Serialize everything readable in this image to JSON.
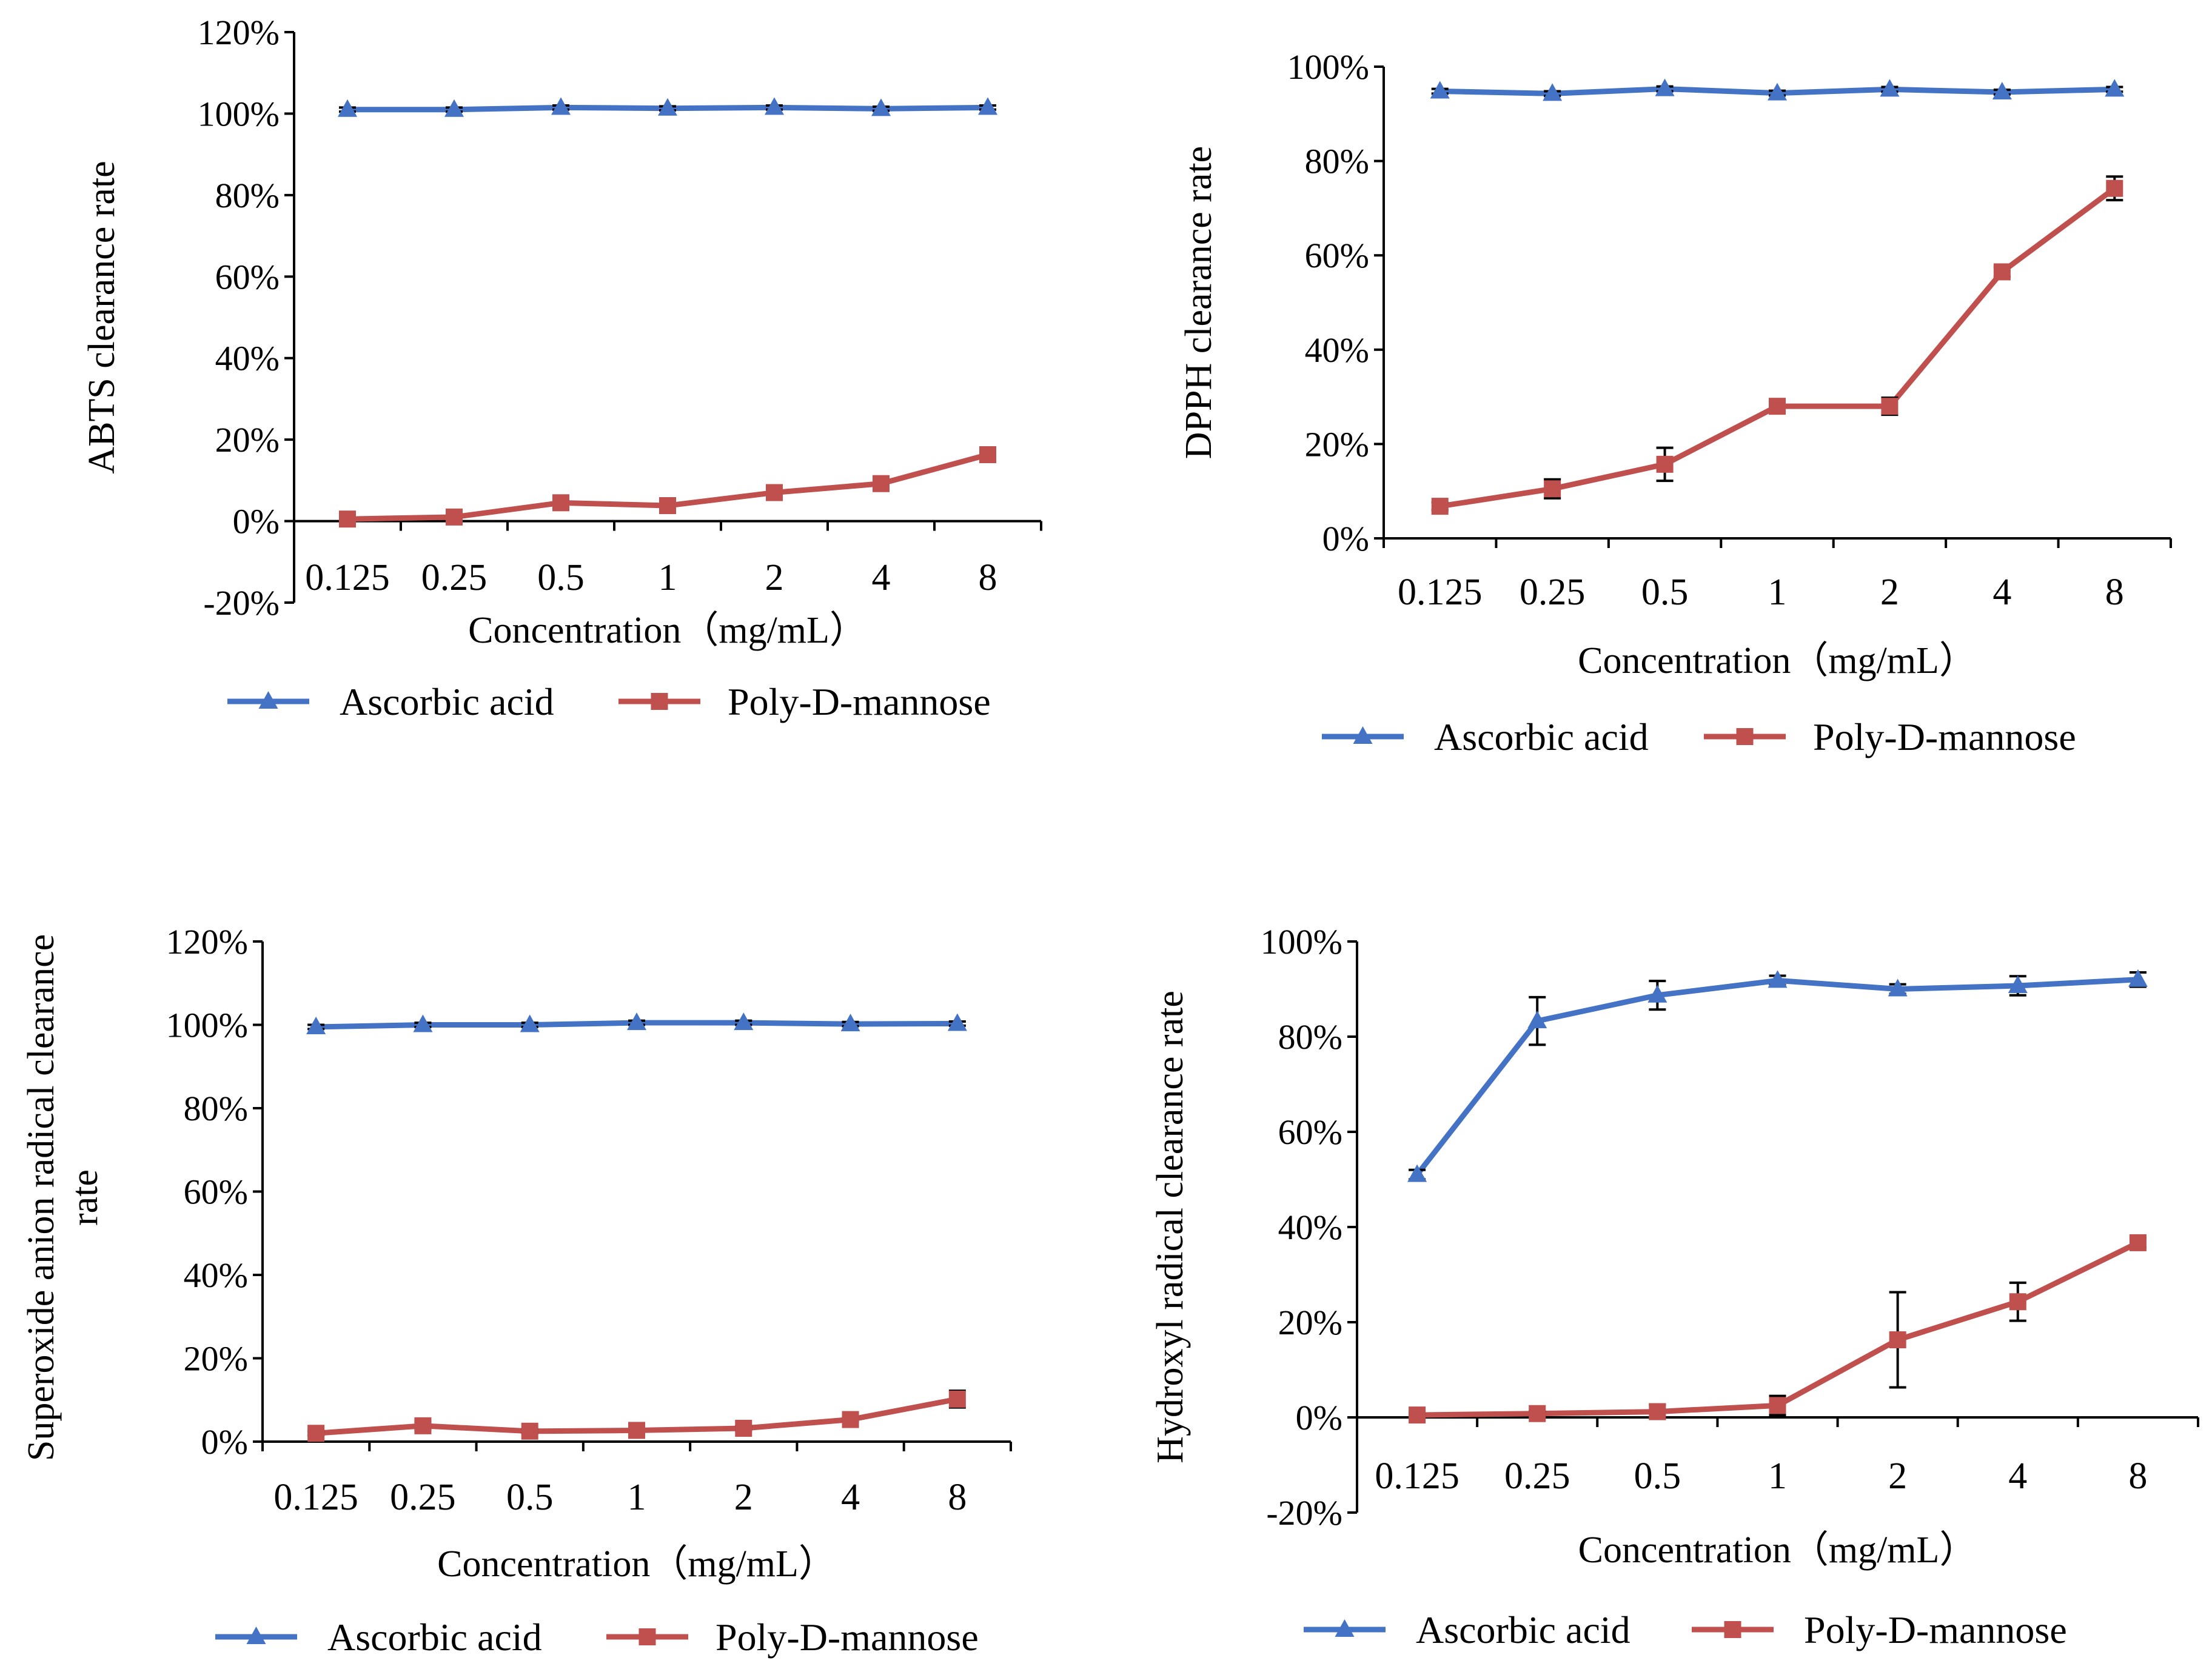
{
  "chart_data": [
    {
      "type": "line",
      "title": "",
      "xlabel": "Concentration（mg/mL）",
      "ylabel": "ABTS clearance rate",
      "categories": [
        "0.125",
        "0.25",
        "0.5",
        "1",
        "2",
        "4",
        "8"
      ],
      "ylim": [
        -20,
        120
      ],
      "yticks": [
        -20,
        0,
        20,
        40,
        60,
        80,
        100,
        120
      ],
      "grid": false,
      "legend_position": "bottom",
      "series": [
        {
          "name": "Ascorbic acid",
          "color": "#4472C4",
          "marker": "triangle",
          "values": [
            101,
            101,
            101.5,
            101.3,
            101.5,
            101.2,
            101.5
          ],
          "errors": [
            0.5,
            0.5,
            0.5,
            0.5,
            0.5,
            0.5,
            0.5
          ]
        },
        {
          "name": "Poly-D-mannose",
          "color": "#C0504D",
          "marker": "square",
          "values": [
            0.5,
            1,
            4.5,
            3.8,
            7,
            9.2,
            16.3
          ],
          "errors": [
            0.3,
            0.3,
            0.6,
            0.6,
            0.6,
            0.6,
            0.8
          ]
        }
      ]
    },
    {
      "type": "line",
      "title": "",
      "xlabel": "Concentration（mg/mL）",
      "ylabel": "DPPH clearance rate",
      "categories": [
        "0.125",
        "0.25",
        "0.5",
        "1",
        "2",
        "4",
        "8"
      ],
      "ylim": [
        0,
        100
      ],
      "yticks": [
        0,
        20,
        40,
        60,
        80,
        100
      ],
      "grid": false,
      "legend_position": "bottom",
      "series": [
        {
          "name": "Ascorbic acid",
          "color": "#4472C4",
          "marker": "triangle",
          "values": [
            94.8,
            94.3,
            95.3,
            94.4,
            95.2,
            94.6,
            95.2
          ],
          "errors": [
            0.5,
            0.5,
            0.5,
            0.5,
            0.5,
            0.5,
            0.5
          ]
        },
        {
          "name": "Poly-D-mannose",
          "color": "#C0504D",
          "marker": "square",
          "values": [
            6.8,
            10.5,
            15.7,
            28,
            28,
            56.5,
            74.2
          ],
          "errors": [
            0.8,
            2.0,
            3.5,
            0.8,
            1.8,
            1.0,
            2.5
          ]
        }
      ]
    },
    {
      "type": "line",
      "title": "",
      "xlabel": "Concentration（mg/mL）",
      "ylabel_lines": [
        "Superoxide anion radical  clearance",
        "rate"
      ],
      "categories": [
        "0.125",
        "0.25",
        "0.5",
        "1",
        "2",
        "4",
        "8"
      ],
      "ylim": [
        0,
        120
      ],
      "yticks": [
        0,
        20,
        40,
        60,
        80,
        100,
        120
      ],
      "grid": false,
      "legend_position": "bottom",
      "series": [
        {
          "name": "Ascorbic acid",
          "color": "#4472C4",
          "marker": "triangle",
          "values": [
            99.5,
            100,
            100,
            100.5,
            100.5,
            100.2,
            100.3
          ],
          "errors": [
            0.5,
            0.5,
            0.5,
            0.5,
            0.5,
            0.5,
            0.5
          ]
        },
        {
          "name": "Poly-D-mannose",
          "color": "#C0504D",
          "marker": "square",
          "values": [
            2,
            3.8,
            2.5,
            2.7,
            3.2,
            5.3,
            10.2
          ],
          "errors": [
            0.5,
            1.0,
            0.5,
            0.5,
            0.5,
            0.5,
            2.0
          ]
        }
      ]
    },
    {
      "type": "line",
      "title": "",
      "xlabel": "Concentration（mg/mL）",
      "ylabel": "Hydroxyl radical clearance rate",
      "categories": [
        "0.125",
        "0.25",
        "0.5",
        "1",
        "2",
        "4",
        "8"
      ],
      "ylim": [
        -20,
        100
      ],
      "yticks": [
        -20,
        0,
        20,
        40,
        60,
        80,
        100
      ],
      "grid": false,
      "legend_position": "bottom",
      "series": [
        {
          "name": "Ascorbic acid",
          "color": "#4472C4",
          "marker": "triangle",
          "values": [
            51,
            83.3,
            88.7,
            91.8,
            90,
            90.7,
            92
          ],
          "errors": [
            1.0,
            5.0,
            3.0,
            1.0,
            1.0,
            2.0,
            1.5
          ]
        },
        {
          "name": "Poly-D-mannose",
          "color": "#C0504D",
          "marker": "square",
          "values": [
            0.5,
            0.8,
            1.2,
            2.5,
            16.3,
            24.3,
            36.7
          ],
          "errors": [
            0.3,
            0.5,
            1.5,
            2.0,
            10.0,
            4.0,
            1.0
          ]
        }
      ]
    }
  ]
}
